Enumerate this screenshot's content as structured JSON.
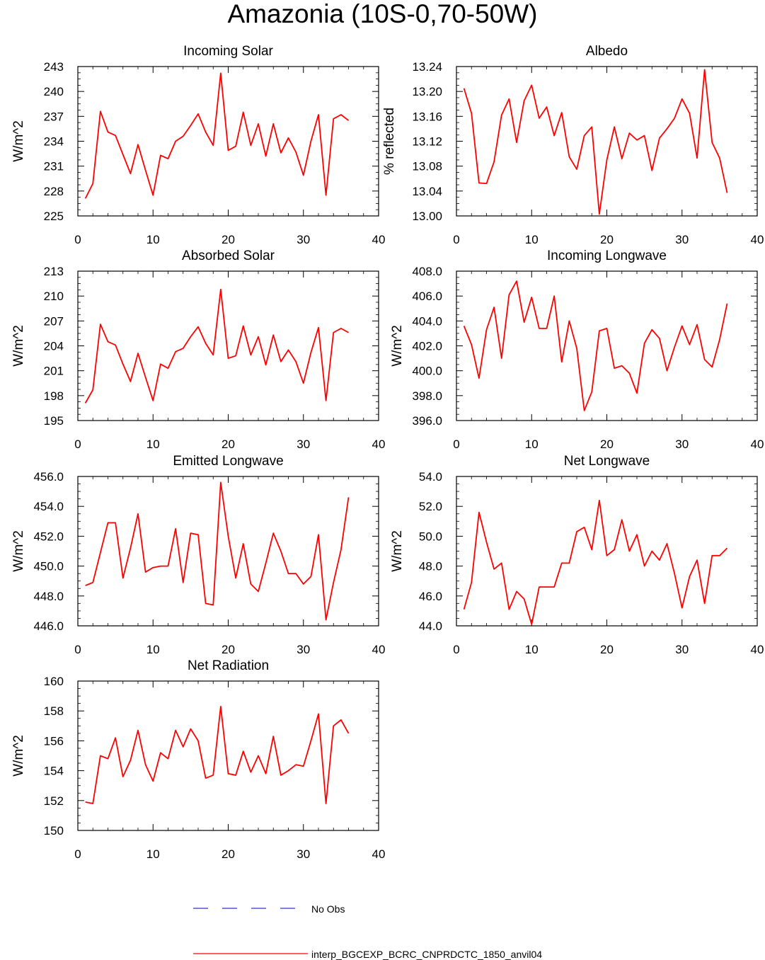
{
  "page": {
    "title": "Amazonia (10S-0,70-50W)"
  },
  "legend": {
    "entries": [
      {
        "label": "No Obs",
        "color": "#3333cc",
        "style": "dashed"
      },
      {
        "label": "interp_BGCEXP_BCRC_CNPRDCTC_1850_anvil04",
        "color": "#ff0000",
        "style": "solid"
      }
    ]
  },
  "chart_data": [
    {
      "type": "line",
      "title": "Incoming Solar",
      "xlabel": "",
      "ylabel": "W/m^2",
      "xlim": [
        0,
        40
      ],
      "ylim": [
        225,
        243
      ],
      "xticks": [
        0,
        10,
        20,
        30,
        40
      ],
      "xtick_labels": [
        "0",
        "10",
        "20",
        "30",
        "40"
      ],
      "yticks": [
        225,
        228,
        231,
        234,
        237,
        240,
        243
      ],
      "ytick_labels": [
        "225",
        "228",
        "231",
        "234",
        "237",
        "240",
        "243"
      ],
      "grid": false,
      "color": "#ff0000",
      "series": [
        {
          "x": [
            1,
            2,
            3,
            4,
            5,
            6,
            7,
            8,
            9,
            10,
            11,
            12,
            13,
            14,
            15,
            16,
            17,
            18,
            19,
            20,
            21,
            22,
            23,
            24,
            25,
            26,
            27,
            28,
            29,
            30,
            31,
            32,
            33,
            34,
            35,
            36
          ],
          "values": [
            227.1,
            228.9,
            237.6,
            235.1,
            234.7,
            232.4,
            230.1,
            233.6,
            230.5,
            227.5,
            232.3,
            231.9,
            234.0,
            234.6,
            235.9,
            237.3,
            235.1,
            233.5,
            242.2,
            232.9,
            233.4,
            237.5,
            233.5,
            236.1,
            232.2,
            236.1,
            232.6,
            234.4,
            232.7,
            229.9,
            234.0,
            237.2,
            227.5,
            236.7,
            237.2,
            236.5
          ]
        }
      ]
    },
    {
      "type": "line",
      "title": "Albedo",
      "xlabel": "",
      "ylabel": "% reflected",
      "xlim": [
        0,
        40
      ],
      "ylim": [
        13.0,
        13.24
      ],
      "xticks": [
        0,
        10,
        20,
        30,
        40
      ],
      "xtick_labels": [
        "0",
        "10",
        "20",
        "30",
        "40"
      ],
      "yticks": [
        13.0,
        13.04,
        13.08,
        13.12,
        13.16,
        13.2,
        13.24
      ],
      "ytick_labels": [
        "13.00",
        "13.04",
        "13.08",
        "13.12",
        "13.16",
        "13.20",
        "13.24"
      ],
      "grid": false,
      "color": "#ff0000",
      "series": [
        {
          "x": [
            1,
            2,
            3,
            4,
            5,
            6,
            7,
            8,
            9,
            10,
            11,
            12,
            13,
            14,
            15,
            16,
            17,
            18,
            19,
            20,
            21,
            22,
            23,
            24,
            25,
            26,
            27,
            28,
            29,
            30,
            31,
            32,
            33,
            34,
            35,
            36
          ],
          "values": [
            13.205,
            13.165,
            13.053,
            13.052,
            13.087,
            13.162,
            13.188,
            13.118,
            13.185,
            13.21,
            13.157,
            13.175,
            13.129,
            13.166,
            13.095,
            13.075,
            13.129,
            13.143,
            13.003,
            13.09,
            13.143,
            13.092,
            13.133,
            13.122,
            13.129,
            13.073,
            13.125,
            13.14,
            13.157,
            13.188,
            13.165,
            13.093,
            13.235,
            13.118,
            13.093,
            13.037
          ]
        }
      ]
    },
    {
      "type": "line",
      "title": "Absorbed Solar",
      "xlabel": "",
      "ylabel": "W/m^2",
      "xlim": [
        0,
        40
      ],
      "ylim": [
        195,
        213
      ],
      "xticks": [
        0,
        10,
        20,
        30,
        40
      ],
      "xtick_labels": [
        "0",
        "10",
        "20",
        "30",
        "40"
      ],
      "yticks": [
        195,
        198,
        201,
        204,
        207,
        210,
        213
      ],
      "ytick_labels": [
        "195",
        "198",
        "201",
        "204",
        "207",
        "210",
        "213"
      ],
      "grid": false,
      "color": "#ff0000",
      "series": [
        {
          "x": [
            1,
            2,
            3,
            4,
            5,
            6,
            7,
            8,
            9,
            10,
            11,
            12,
            13,
            14,
            15,
            16,
            17,
            18,
            19,
            20,
            21,
            22,
            23,
            24,
            25,
            26,
            27,
            28,
            29,
            30,
            31,
            32,
            33,
            34,
            35,
            36
          ],
          "values": [
            197.1,
            198.7,
            206.6,
            204.5,
            204.1,
            201.8,
            199.7,
            203.1,
            200.2,
            197.4,
            201.8,
            201.3,
            203.3,
            203.7,
            205.1,
            206.3,
            204.3,
            202.9,
            210.8,
            202.5,
            202.8,
            206.4,
            202.9,
            205.1,
            201.7,
            205.3,
            202.1,
            203.5,
            202.1,
            199.5,
            203.2,
            206.2,
            197.4,
            205.6,
            206.1,
            205.6
          ]
        }
      ]
    },
    {
      "type": "line",
      "title": "Incoming Longwave",
      "xlabel": "",
      "ylabel": "W/m^2",
      "xlim": [
        0,
        40
      ],
      "ylim": [
        396,
        408
      ],
      "xticks": [
        0,
        10,
        20,
        30,
        40
      ],
      "xtick_labels": [
        "0",
        "10",
        "20",
        "30",
        "40"
      ],
      "yticks": [
        396,
        398,
        400,
        402,
        404,
        406,
        408
      ],
      "ytick_labels": [
        "396.0",
        "398.0",
        "400.0",
        "402.0",
        "404.0",
        "406.0",
        "408.0"
      ],
      "grid": false,
      "color": "#ff0000",
      "series": [
        {
          "x": [
            1,
            2,
            3,
            4,
            5,
            6,
            7,
            8,
            9,
            10,
            11,
            12,
            13,
            14,
            15,
            16,
            17,
            18,
            19,
            20,
            21,
            22,
            23,
            24,
            25,
            26,
            27,
            28,
            29,
            30,
            31,
            32,
            33,
            34,
            35,
            36
          ],
          "values": [
            403.6,
            402.1,
            399.4,
            403.3,
            405.1,
            401.0,
            406.1,
            407.2,
            403.9,
            405.9,
            403.4,
            403.4,
            406.0,
            400.7,
            404.0,
            401.8,
            396.8,
            398.3,
            403.2,
            403.4,
            400.2,
            400.4,
            399.8,
            398.2,
            402.2,
            403.3,
            402.6,
            400.0,
            401.9,
            403.6,
            402.1,
            403.7,
            400.9,
            400.3,
            402.5,
            405.4
          ]
        }
      ]
    },
    {
      "type": "line",
      "title": "Emitted Longwave",
      "xlabel": "",
      "ylabel": "W/m^2",
      "xlim": [
        0,
        40
      ],
      "ylim": [
        446,
        456
      ],
      "xticks": [
        0,
        10,
        20,
        30,
        40
      ],
      "xtick_labels": [
        "0",
        "10",
        "20",
        "30",
        "40"
      ],
      "yticks": [
        446,
        448,
        450,
        452,
        454,
        456
      ],
      "ytick_labels": [
        "446.0",
        "448.0",
        "450.0",
        "452.0",
        "454.0",
        "456.0"
      ],
      "grid": false,
      "color": "#ff0000",
      "series": [
        {
          "x": [
            1,
            2,
            3,
            4,
            5,
            6,
            7,
            8,
            9,
            10,
            11,
            12,
            13,
            14,
            15,
            16,
            17,
            18,
            19,
            20,
            21,
            22,
            23,
            24,
            25,
            26,
            27,
            28,
            29,
            30,
            31,
            32,
            33,
            34,
            35,
            36
          ],
          "values": [
            448.7,
            448.9,
            450.9,
            452.9,
            452.9,
            449.2,
            451.2,
            453.5,
            449.6,
            449.9,
            450.0,
            450.0,
            452.5,
            448.9,
            452.2,
            452.1,
            447.5,
            447.4,
            455.6,
            452.0,
            449.2,
            451.5,
            448.8,
            448.3,
            450.2,
            452.2,
            451.0,
            449.5,
            449.5,
            448.8,
            449.3,
            452.1,
            446.4,
            448.9,
            451.1,
            454.6
          ]
        }
      ]
    },
    {
      "type": "line",
      "title": "Net Longwave",
      "xlabel": "",
      "ylabel": "W/m^2",
      "xlim": [
        0,
        40
      ],
      "ylim": [
        44,
        54
      ],
      "xticks": [
        0,
        10,
        20,
        30,
        40
      ],
      "xtick_labels": [
        "0",
        "10",
        "20",
        "30",
        "40"
      ],
      "yticks": [
        44,
        46,
        48,
        50,
        52,
        54
      ],
      "ytick_labels": [
        "44.0",
        "46.0",
        "48.0",
        "50.0",
        "52.0",
        "54.0"
      ],
      "grid": false,
      "color": "#ff0000",
      "series": [
        {
          "x": [
            1,
            2,
            3,
            4,
            5,
            6,
            7,
            8,
            9,
            10,
            11,
            12,
            13,
            14,
            15,
            16,
            17,
            18,
            19,
            20,
            21,
            22,
            23,
            24,
            25,
            26,
            27,
            28,
            29,
            30,
            31,
            32,
            33,
            34,
            35,
            36
          ],
          "values": [
            45.1,
            46.9,
            51.6,
            49.6,
            47.8,
            48.2,
            45.1,
            46.3,
            45.8,
            44.1,
            46.6,
            46.6,
            46.6,
            48.2,
            48.2,
            50.3,
            50.6,
            49.1,
            52.4,
            48.7,
            49.1,
            51.1,
            49.0,
            50.1,
            48.0,
            49.0,
            48.4,
            49.5,
            47.5,
            45.2,
            47.3,
            48.4,
            45.5,
            48.7,
            48.7,
            49.2
          ]
        }
      ]
    },
    {
      "type": "line",
      "title": "Net Radiation",
      "xlabel": "",
      "ylabel": "W/m^2",
      "xlim": [
        0,
        40
      ],
      "ylim": [
        150,
        160
      ],
      "xticks": [
        0,
        10,
        20,
        30,
        40
      ],
      "xtick_labels": [
        "0",
        "10",
        "20",
        "30",
        "40"
      ],
      "yticks": [
        150,
        152,
        154,
        156,
        158,
        160
      ],
      "ytick_labels": [
        "150",
        "152",
        "154",
        "156",
        "158",
        "160"
      ],
      "grid": false,
      "color": "#ff0000",
      "series": [
        {
          "x": [
            1,
            2,
            3,
            4,
            5,
            6,
            7,
            8,
            9,
            10,
            11,
            12,
            13,
            14,
            15,
            16,
            17,
            18,
            19,
            20,
            21,
            22,
            23,
            24,
            25,
            26,
            27,
            28,
            29,
            30,
            31,
            32,
            33,
            34,
            35,
            36
          ],
          "values": [
            151.9,
            151.8,
            155.0,
            154.8,
            156.2,
            153.6,
            154.7,
            156.7,
            154.4,
            153.3,
            155.2,
            154.8,
            156.7,
            155.6,
            156.8,
            156.0,
            153.5,
            153.7,
            158.3,
            153.8,
            153.7,
            155.3,
            153.9,
            155.0,
            153.8,
            156.3,
            153.7,
            154.0,
            154.4,
            154.3,
            156.0,
            157.8,
            151.8,
            157.0,
            157.4,
            156.5
          ]
        }
      ]
    }
  ]
}
